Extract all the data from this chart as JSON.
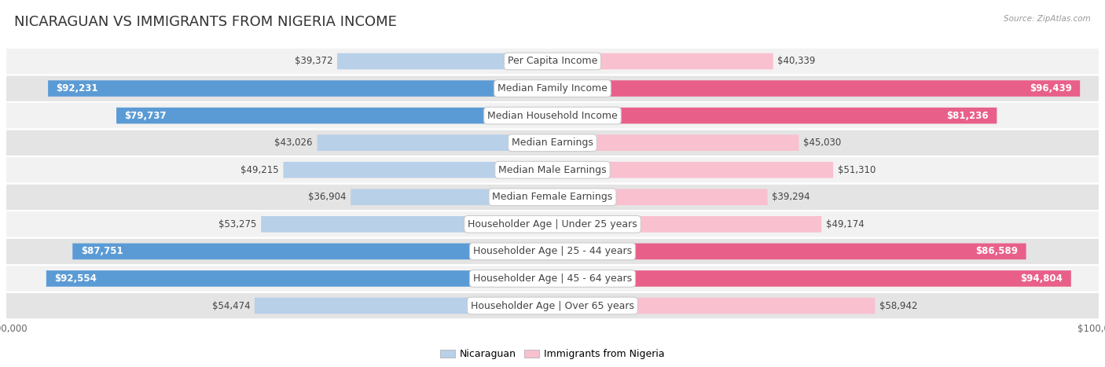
{
  "title": "NICARAGUAN VS IMMIGRANTS FROM NIGERIA INCOME",
  "source": "Source: ZipAtlas.com",
  "categories": [
    "Per Capita Income",
    "Median Family Income",
    "Median Household Income",
    "Median Earnings",
    "Median Male Earnings",
    "Median Female Earnings",
    "Householder Age | Under 25 years",
    "Householder Age | 25 - 44 years",
    "Householder Age | 45 - 64 years",
    "Householder Age | Over 65 years"
  ],
  "nicaraguan": [
    39372,
    92231,
    79737,
    43026,
    49215,
    36904,
    53275,
    87751,
    92554,
    54474
  ],
  "nigeria": [
    40339,
    96439,
    81236,
    45030,
    51310,
    39294,
    49174,
    86589,
    94804,
    58942
  ],
  "max_val": 100000,
  "blue_light": "#b8d0e8",
  "blue_dark": "#5b9bd5",
  "pink_light": "#f9c0d0",
  "pink_dark": "#e8608a",
  "label_blue": "Nicaraguan",
  "label_pink": "Immigrants from Nigeria",
  "row_bg_light": "#f2f2f2",
  "row_bg_dark": "#e4e4e4",
  "title_fontsize": 13,
  "value_fontsize": 8.5,
  "category_fontsize": 9,
  "inside_threshold": 75000
}
